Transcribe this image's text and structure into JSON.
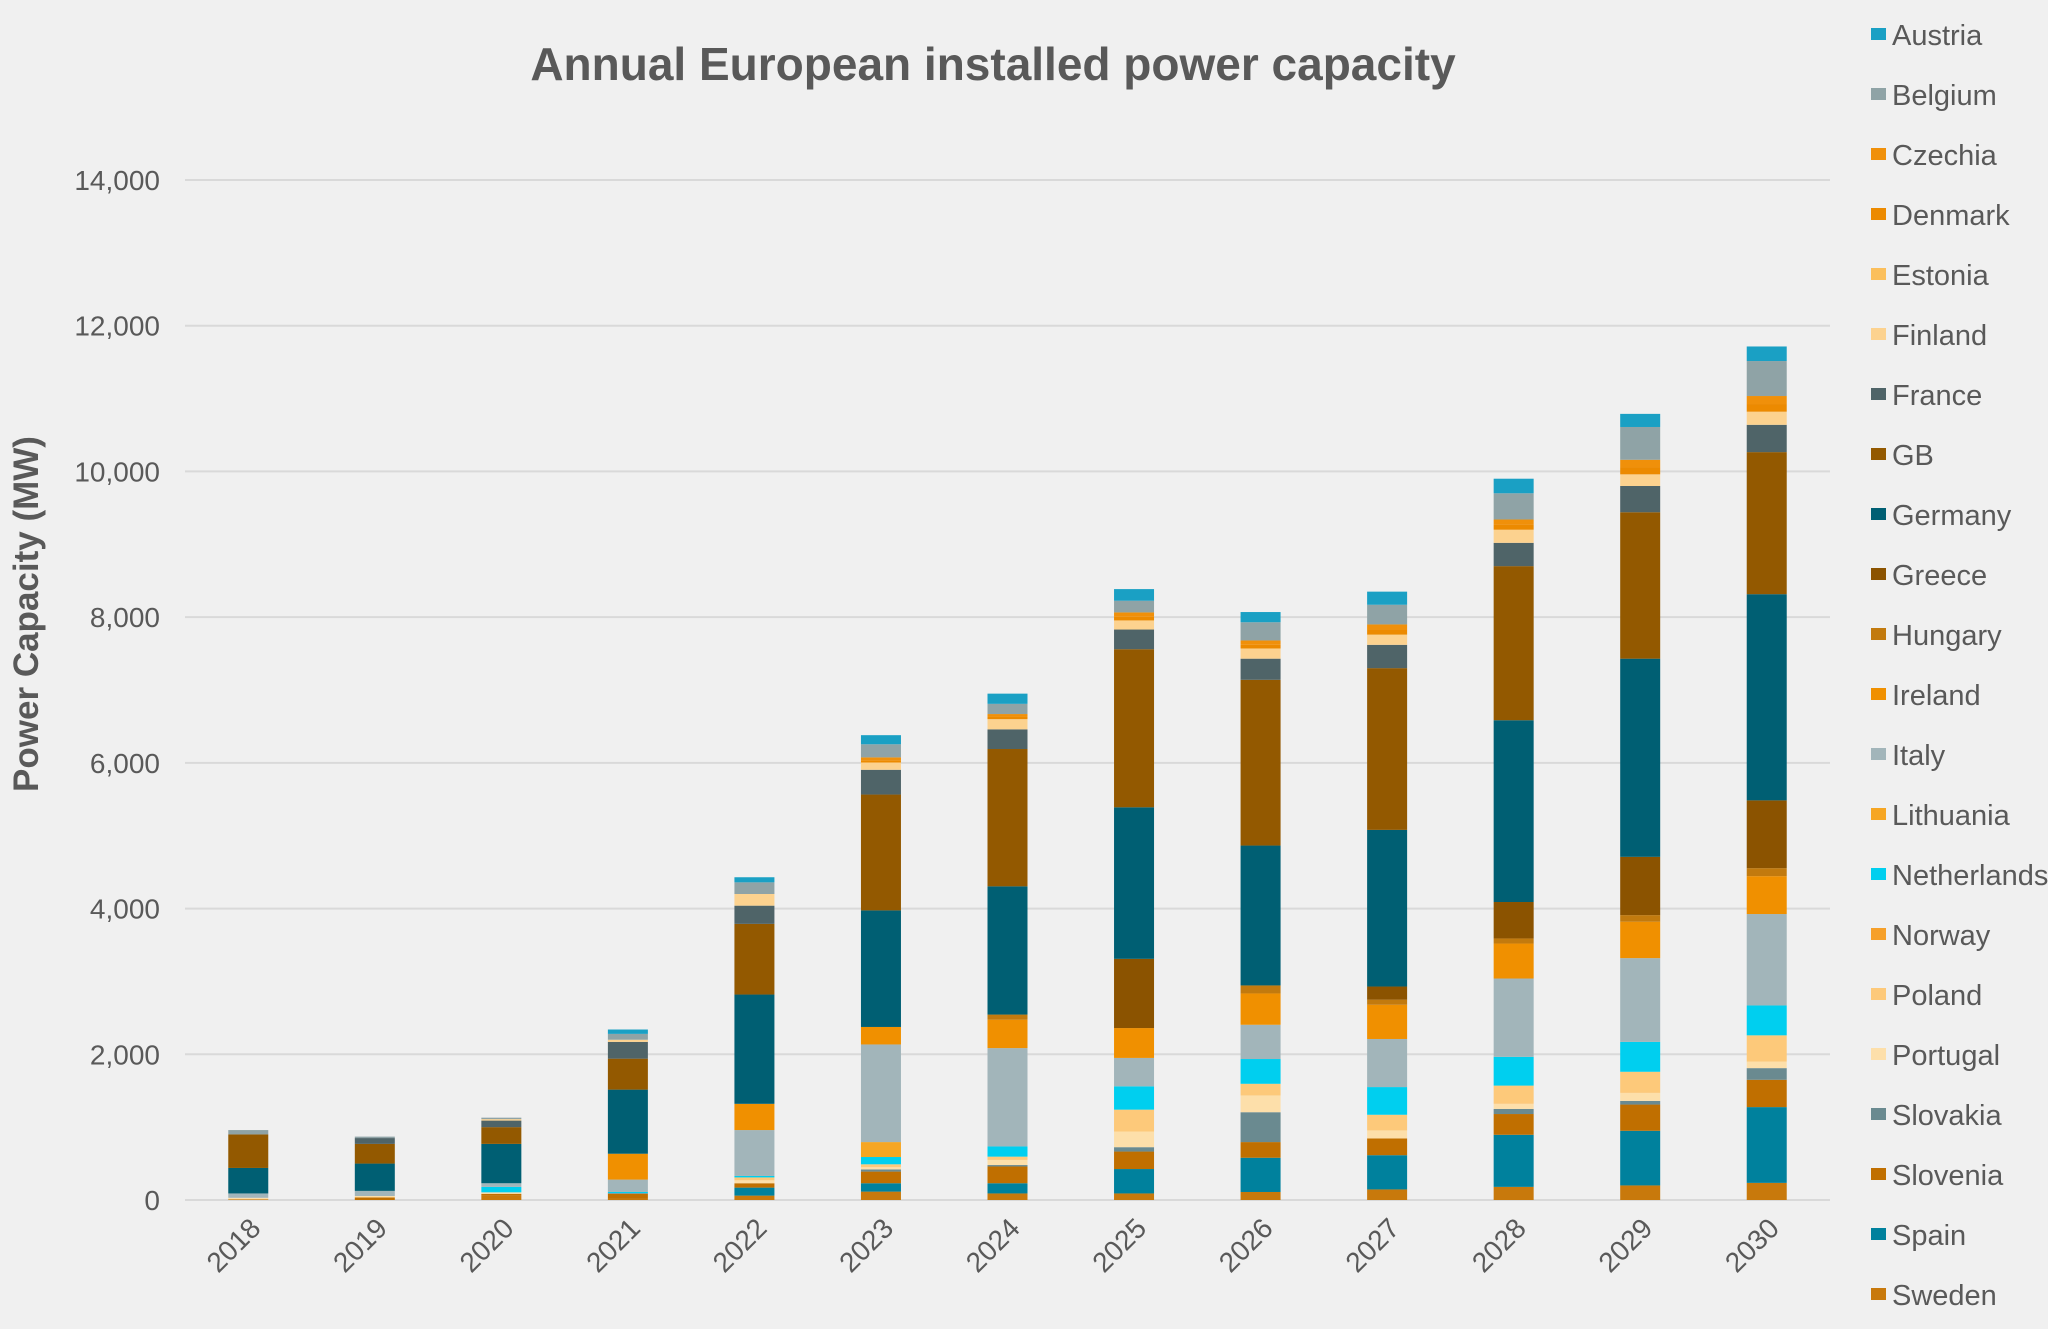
{
  "chart_data": {
    "type": "bar",
    "stacked": true,
    "title": "Annual European installed power capacity",
    "xlabel": "",
    "ylabel": "Power Capacity (MW)",
    "ylim": [
      0,
      14000
    ],
    "yticks": [
      0,
      2000,
      4000,
      6000,
      8000,
      10000,
      12000,
      14000
    ],
    "ytick_labels": [
      "0",
      "2,000",
      "4,000",
      "6,000",
      "8,000",
      "10,000",
      "12,000",
      "14,000"
    ],
    "grid": true,
    "legend_placement": "right",
    "categories": [
      "2018",
      "2019",
      "2020",
      "2021",
      "2022",
      "2023",
      "2024",
      "2025",
      "2026",
      "2027",
      "2028",
      "2029",
      "2030"
    ],
    "series": [
      {
        "name": "Austria",
        "color": "#1aa0c4",
        "values": [
          0,
          0,
          0,
          60,
          70,
          125,
          140,
          160,
          140,
          180,
          200,
          180,
          200
        ]
      },
      {
        "name": "Belgium",
        "color": "#8fa3a6",
        "values": [
          60,
          20,
          20,
          80,
          160,
          180,
          140,
          160,
          250,
          270,
          360,
          450,
          480
        ]
      },
      {
        "name": "Czechia",
        "color": "#f0900a",
        "values": [
          0,
          0,
          0,
          0,
          0,
          40,
          40,
          60,
          60,
          70,
          70,
          100,
          110
        ]
      },
      {
        "name": "Denmark",
        "color": "#ec8a00",
        "values": [
          0,
          0,
          0,
          0,
          0,
          30,
          30,
          50,
          50,
          70,
          70,
          100,
          105
        ]
      },
      {
        "name": "Estonia",
        "color": "#fbbf5c",
        "values": [
          0,
          0,
          0,
          0,
          0,
          0,
          0,
          0,
          0,
          0,
          0,
          0,
          0
        ]
      },
      {
        "name": "Finland",
        "color": "#fcd28f",
        "values": [
          0,
          0,
          20,
          30,
          160,
          100,
          140,
          125,
          140,
          140,
          180,
          160,
          180
        ]
      },
      {
        "name": "France",
        "color": "#4f6468",
        "values": [
          0,
          80,
          90,
          230,
          250,
          340,
          270,
          270,
          290,
          320,
          320,
          360,
          375
        ]
      },
      {
        "name": "GB",
        "color": "#935900",
        "values": [
          460,
          270,
          230,
          425,
          970,
          1590,
          1885,
          2170,
          2275,
          2220,
          2115,
          2010,
          1950
        ]
      },
      {
        "name": "Germany",
        "color": "#005f73",
        "values": [
          350,
          375,
          540,
          880,
          1500,
          1600,
          1760,
          2080,
          1920,
          2150,
          2495,
          2720,
          2830
        ]
      },
      {
        "name": "Greece",
        "color": "#8b5300",
        "values": [
          0,
          0,
          0,
          0,
          0,
          0,
          0,
          950,
          0,
          180,
          500,
          800,
          930
        ]
      },
      {
        "name": "Hungary",
        "color": "#c27a0e",
        "values": [
          0,
          0,
          0,
          0,
          0,
          0,
          70,
          0,
          110,
          70,
          70,
          90,
          110
        ]
      },
      {
        "name": "Ireland",
        "color": "#f09000",
        "values": [
          0,
          0,
          0,
          355,
          360,
          240,
          390,
          410,
          430,
          470,
          480,
          500,
          520
        ]
      },
      {
        "name": "Italy",
        "color": "#a2b5ba",
        "values": [
          60,
          70,
          50,
          170,
          630,
          1340,
          1350,
          390,
          470,
          660,
          1075,
          1150,
          1255
        ]
      },
      {
        "name": "Lithuania",
        "color": "#f6a623",
        "values": [
          0,
          0,
          0,
          0,
          0,
          205,
          0,
          0,
          0,
          0,
          0,
          0,
          0
        ]
      },
      {
        "name": "Netherlands",
        "color": "#00cfef",
        "values": [
          0,
          0,
          75,
          15,
          20,
          100,
          140,
          320,
          340,
          380,
          395,
          410,
          410
        ]
      },
      {
        "name": "Norway",
        "color": "#f6a02a",
        "values": [
          0,
          0,
          0,
          0,
          0,
          0,
          0,
          0,
          0,
          0,
          0,
          0,
          0
        ]
      },
      {
        "name": "Poland",
        "color": "#fdc97a",
        "values": [
          0,
          0,
          0,
          0,
          40,
          40,
          45,
          300,
          160,
          215,
          250,
          290,
          360
        ]
      },
      {
        "name": "Portugal",
        "color": "#fddfaa",
        "values": [
          20,
          20,
          20,
          0,
          40,
          30,
          70,
          215,
          230,
          110,
          70,
          110,
          90
        ]
      },
      {
        "name": "Slovakia",
        "color": "#6a8a90",
        "values": [
          0,
          0,
          0,
          10,
          0,
          30,
          20,
          60,
          410,
          0,
          70,
          50,
          160
        ]
      },
      {
        "name": "Slovenia",
        "color": "#c06f00",
        "values": [
          0,
          35,
          25,
          65,
          60,
          160,
          230,
          240,
          215,
          230,
          285,
          360,
          375
        ]
      },
      {
        "name": "Spain",
        "color": "#00819d",
        "values": [
          0,
          0,
          0,
          0,
          110,
          115,
          140,
          335,
          470,
          470,
          715,
          750,
          1040
        ]
      },
      {
        "name": "Sweden",
        "color": "#c8790c",
        "values": [
          10,
          0,
          60,
          20,
          60,
          115,
          90,
          90,
          110,
          145,
          180,
          200,
          235
        ]
      }
    ]
  }
}
